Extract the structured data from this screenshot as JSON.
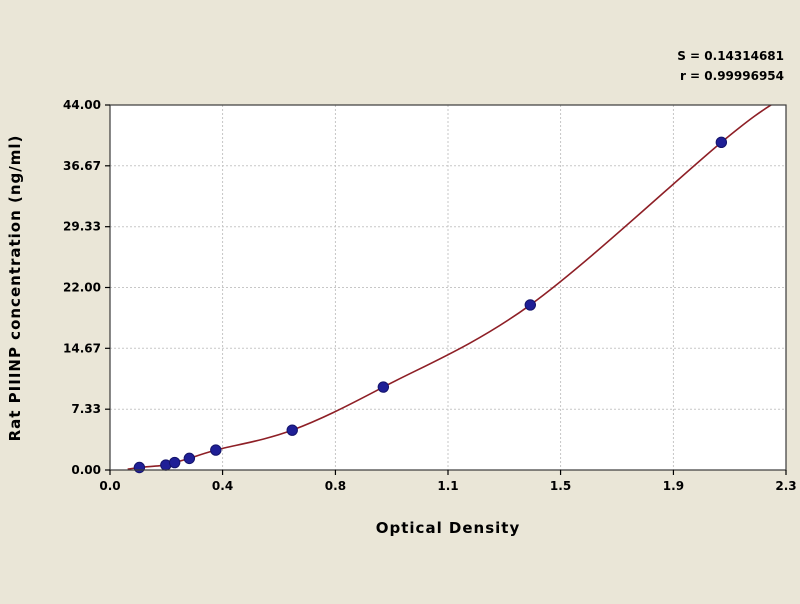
{
  "stats": {
    "line1": "S = 0.14314681",
    "line2": "r = 0.99996954"
  },
  "chart_data": {
    "type": "scatter",
    "title": "",
    "xlabel": "Optical Density",
    "ylabel": "Rat PIIINP concentration (ng/ml)",
    "xlim": [
      0,
      2.3
    ],
    "ylim": [
      0,
      44
    ],
    "grid": true,
    "legend": false,
    "x_ticks": [
      0,
      0.383,
      0.767,
      1.15,
      1.533,
      1.917,
      2.3
    ],
    "x_tick_labels": [
      "0.0",
      "0.4",
      "0.8",
      "1.1",
      "1.5",
      "1.9",
      "2.3"
    ],
    "y_ticks": [
      0,
      7.33,
      14.67,
      22,
      29.33,
      36.67,
      44
    ],
    "y_tick_labels": [
      "0.00",
      "7.33",
      "14.67",
      "22.00",
      "29.33",
      "36.67",
      "44.00"
    ],
    "points": [
      [
        0.1,
        0.3
      ],
      [
        0.19,
        0.6
      ],
      [
        0.22,
        0.9
      ],
      [
        0.27,
        1.4
      ],
      [
        0.36,
        2.4
      ],
      [
        0.62,
        4.8
      ],
      [
        0.93,
        10.0
      ],
      [
        1.43,
        19.9
      ],
      [
        2.08,
        39.5
      ]
    ],
    "curve_start": [
      0.06,
      0.1
    ],
    "curve_end": [
      2.27,
      44.5
    ],
    "colors": {
      "page_bg": "#eae6d7",
      "plot_bg": "#ffffff",
      "grid": "#c7c7c7",
      "curve": "#8e1f26",
      "point": "#1f1f96"
    }
  }
}
